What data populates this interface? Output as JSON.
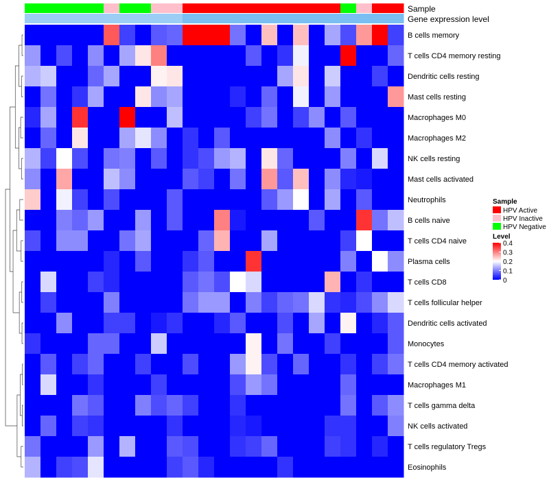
{
  "chart_data": {
    "type": "heatmap",
    "title": "",
    "annotation_tracks": [
      {
        "name": "Sample",
        "label": "Sample"
      },
      {
        "name": "Gene expression level",
        "label": "Gene expression level"
      }
    ],
    "sample_annotation": [
      "HPV Negative",
      "HPV Negative",
      "HPV Negative",
      "HPV Negative",
      "HPV Negative",
      "HPV Inactive",
      "HPV Negative",
      "HPV Negative",
      "HPV Inactive",
      "HPV Inactive",
      "HPV Active",
      "HPV Active",
      "HPV Active",
      "HPV Active",
      "HPV Active",
      "HPV Active",
      "HPV Active",
      "HPV Active",
      "HPV Active",
      "HPV Active",
      "HPV Negative",
      "HPV Inactive",
      "HPV Active",
      "HPV Active"
    ],
    "expression_annotation": [
      0.05,
      0.05,
      0.05,
      0.05,
      0.05,
      0.05,
      0.05,
      0.05,
      0.05,
      0.05,
      0.08,
      0.08,
      0.08,
      0.08,
      0.08,
      0.08,
      0.08,
      0.08,
      0.08,
      0.08,
      0.08,
      0.08,
      0.08,
      0.08
    ],
    "rows": [
      "B cells memory",
      "T cells CD4 memory resting",
      "Dendritic cells resting",
      "Mast cells resting",
      "Macrophages M0",
      "Macrophages M2",
      "NK cells resting",
      "Mast cells activated",
      "Neutrophils",
      "B cells naive",
      "T cells CD4 naive",
      "Plasma cells",
      "T cells CD8",
      "T cells follicular helper",
      "Dendritic cells activated",
      "Monocytes",
      "T cells CD4 memory activated",
      "Macrophages M1",
      "T cells gamma delta",
      "NK cells activated",
      "T cells regulatory  Tregs",
      "Eosinophils"
    ],
    "values": [
      [
        0,
        0,
        0,
        0,
        0,
        0.33,
        0.05,
        0,
        0.07,
        0.08,
        0.4,
        0.4,
        0.4,
        0.09,
        0,
        0.25,
        0,
        0.25,
        0,
        0.13,
        0.06,
        0.28,
        0.4,
        0.05
      ],
      [
        0.12,
        0,
        0.06,
        0,
        0.11,
        0,
        0.13,
        0.22,
        0.3,
        0,
        0,
        0,
        0,
        0,
        0.07,
        0,
        0.04,
        0.19,
        0,
        0,
        0.4,
        0,
        0,
        0.08
      ],
      [
        0.14,
        0.16,
        0,
        0,
        0.08,
        0.13,
        0,
        0,
        0.21,
        0.22,
        0,
        0,
        0,
        0,
        0,
        0,
        0.13,
        0.22,
        0,
        0.16,
        0,
        0,
        0.05,
        0
      ],
      [
        0,
        0.09,
        0,
        0.04,
        0.13,
        0,
        0,
        0.22,
        0.11,
        0.13,
        0,
        0,
        0,
        0.03,
        0,
        0.08,
        0,
        0.19,
        0,
        0.12,
        0,
        0,
        0,
        0.28
      ],
      [
        0.03,
        0.13,
        0,
        0.36,
        0,
        0,
        0.4,
        0,
        0,
        0.15,
        0,
        0,
        0,
        0,
        0.05,
        0.09,
        0,
        0.05,
        0.11,
        0,
        0.07,
        0,
        0,
        0
      ],
      [
        0,
        0.08,
        0,
        0.22,
        0,
        0,
        0.13,
        0.18,
        0.11,
        0,
        0.04,
        0,
        0.07,
        0,
        0,
        0,
        0,
        0,
        0,
        0.11,
        0,
        0.04,
        0,
        0
      ],
      [
        0.14,
        0.05,
        0.2,
        0.06,
        0,
        0.09,
        0.1,
        0,
        0.07,
        0,
        0.04,
        0.06,
        0.12,
        0.14,
        0,
        0.22,
        0.08,
        0,
        0,
        0,
        0.1,
        0,
        0.17,
        0
      ],
      [
        0.11,
        0,
        0.27,
        0,
        0,
        0.15,
        0.11,
        0,
        0,
        0,
        0.07,
        0.05,
        0,
        0.09,
        0,
        0.28,
        0.07,
        0.25,
        0,
        0.11,
        0.03,
        0.02,
        0,
        0
      ],
      [
        0.24,
        0,
        0.19,
        0.05,
        0,
        0.06,
        0,
        0,
        0,
        0.07,
        0,
        0,
        0,
        0,
        0,
        0.07,
        0.12,
        0.2,
        0,
        0.13,
        0,
        0.07,
        0,
        0
      ],
      [
        0,
        0,
        0.1,
        0.08,
        0.12,
        0,
        0,
        0.12,
        0,
        0.07,
        0,
        0,
        0.3,
        0.02,
        0,
        0,
        0,
        0,
        0.07,
        0,
        0,
        0.36,
        0.09,
        0.15
      ],
      [
        0.06,
        0,
        0.11,
        0.11,
        0,
        0,
        0.09,
        0.13,
        0,
        0,
        0,
        0.08,
        0.26,
        0,
        0,
        0.13,
        0,
        0,
        0,
        0,
        0.05,
        0.2,
        0,
        0
      ],
      [
        0,
        0,
        0,
        0,
        0,
        0.03,
        0,
        0.07,
        0,
        0,
        0.04,
        0.07,
        0,
        0,
        0.36,
        0,
        0,
        0,
        0,
        0,
        0.1,
        0,
        0.2,
        0.11
      ],
      [
        0,
        0.17,
        0,
        0,
        0.05,
        0.03,
        0,
        0,
        0,
        0,
        0.07,
        0.09,
        0.06,
        0.2,
        0.17,
        0,
        0,
        0,
        0,
        0.26,
        0,
        0.04,
        0,
        0
      ],
      [
        0,
        0.05,
        0,
        0,
        0,
        0.1,
        0,
        0,
        0,
        0,
        0.09,
        0.12,
        0.12,
        0,
        0.1,
        0.05,
        0.08,
        0.09,
        0.17,
        0.04,
        0.03,
        0.06,
        0.11,
        0.17
      ],
      [
        0,
        0,
        0.11,
        0,
        0,
        0.05,
        0.05,
        0,
        0.02,
        0.04,
        0,
        0,
        0.03,
        0.07,
        0,
        0,
        0.06,
        0,
        0.13,
        0,
        0.21,
        0,
        0.03,
        0.07
      ],
      [
        0.04,
        0,
        0,
        0,
        0.08,
        0.08,
        0,
        0,
        0.16,
        0,
        0,
        0,
        0,
        0,
        0.21,
        0,
        0.09,
        0,
        0,
        0.05,
        0,
        0,
        0,
        0.07
      ],
      [
        0,
        0.07,
        0,
        0.05,
        0.08,
        0,
        0,
        0.05,
        0,
        0,
        0.06,
        0,
        0,
        0.12,
        0.21,
        0.06,
        0,
        0.08,
        0,
        0,
        0.04,
        0,
        0.05,
        0.09
      ],
      [
        0,
        0.17,
        0,
        0,
        0.04,
        0,
        0,
        0,
        0.05,
        0,
        0,
        0,
        0,
        0.06,
        0.12,
        0.09,
        0,
        0,
        0,
        0,
        0.08,
        0,
        0,
        0
      ],
      [
        0,
        0,
        0,
        0.09,
        0.07,
        0,
        0,
        0.1,
        0.06,
        0.08,
        0.05,
        0,
        0,
        0.04,
        0,
        0,
        0,
        0,
        0,
        0,
        0.09,
        0,
        0.07,
        0.11
      ],
      [
        0,
        0.08,
        0,
        0.05,
        0.04,
        0,
        0,
        0,
        0,
        0.04,
        0,
        0,
        0,
        0.03,
        0.02,
        0,
        0,
        0,
        0,
        0.04,
        0.04,
        0,
        0,
        0.1
      ],
      [
        0.09,
        0,
        0,
        0,
        0.12,
        0,
        0.14,
        0,
        0,
        0.07,
        0.06,
        0,
        0,
        0.04,
        0.05,
        0.08,
        0,
        0,
        0,
        0.05,
        0.04,
        0,
        0.03,
        0
      ],
      [
        0.14,
        0,
        0.05,
        0.06,
        0.18,
        0,
        0,
        0,
        0,
        0.05,
        0.07,
        0.03,
        0,
        0,
        0,
        0,
        0.04,
        0,
        0,
        0,
        0,
        0,
        0,
        0
      ]
    ],
    "color_scale": {
      "min": 0,
      "max": 0.4,
      "low": "#0000ff",
      "mid": "#ffffff",
      "high": "#ff0000"
    },
    "legend": {
      "sample_title": "Sample",
      "sample_entries": [
        {
          "label": "HPV Active",
          "color": "#ff0000"
        },
        {
          "label": "HPV Inactive",
          "color": "#ffc0cb"
        },
        {
          "label": "HPV Negative",
          "color": "#00ff00"
        }
      ],
      "level_title": "Level",
      "level_ticks": [
        0.4,
        0.3,
        0.2,
        0.1,
        0
      ],
      "level_tick_labels": [
        "0.4",
        "0.3",
        "0.2",
        "0.1",
        "0"
      ],
      "position": "right"
    }
  }
}
